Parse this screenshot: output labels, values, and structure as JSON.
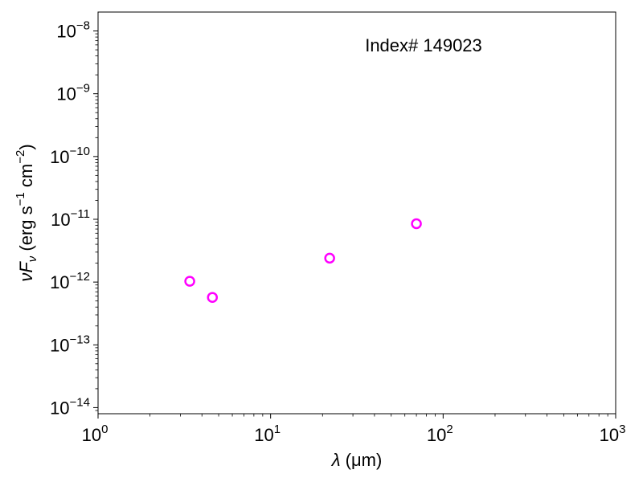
{
  "chart_data": {
    "type": "scatter",
    "annotation": "Index# 149023",
    "xlabel": {
      "symbol": "λ",
      "unit": " (μm)"
    },
    "ylabel": {
      "main": "νF",
      "sub": "ν",
      "unit_prefix": " (erg s",
      "exp1": "−1",
      "unit_mid": " cm",
      "exp2": "−2",
      "unit_suffix": ")"
    },
    "xscale": "log",
    "yscale": "log",
    "xlim": [
      1,
      1000
    ],
    "ylim": [
      8e-15,
      2e-08
    ],
    "xticks": [
      {
        "value": 1,
        "base": "10",
        "exp": "0"
      },
      {
        "value": 10,
        "base": "10",
        "exp": "1"
      },
      {
        "value": 100,
        "base": "10",
        "exp": "2"
      },
      {
        "value": 1000,
        "base": "10",
        "exp": "3"
      }
    ],
    "yticks": [
      {
        "value": 1e-14,
        "base": "10",
        "exp": "−14"
      },
      {
        "value": 1e-13,
        "base": "10",
        "exp": "−13"
      },
      {
        "value": 1e-12,
        "base": "10",
        "exp": "−12"
      },
      {
        "value": 1e-11,
        "base": "10",
        "exp": "−11"
      },
      {
        "value": 1e-10,
        "base": "10",
        "exp": "−10"
      },
      {
        "value": 1e-09,
        "base": "10",
        "exp": "−9"
      },
      {
        "value": 1e-08,
        "base": "10",
        "exp": "−8"
      }
    ],
    "series": [
      {
        "marker": "open-circle",
        "color": "#ff00ff",
        "points": [
          {
            "x": 3.4,
            "y": 1.03e-12
          },
          {
            "x": 4.6,
            "y": 5.7e-13
          },
          {
            "x": 22,
            "y": 2.4e-12
          },
          {
            "x": 70,
            "y": 8.5e-12
          }
        ]
      }
    ],
    "grid": false,
    "legend": "none"
  }
}
